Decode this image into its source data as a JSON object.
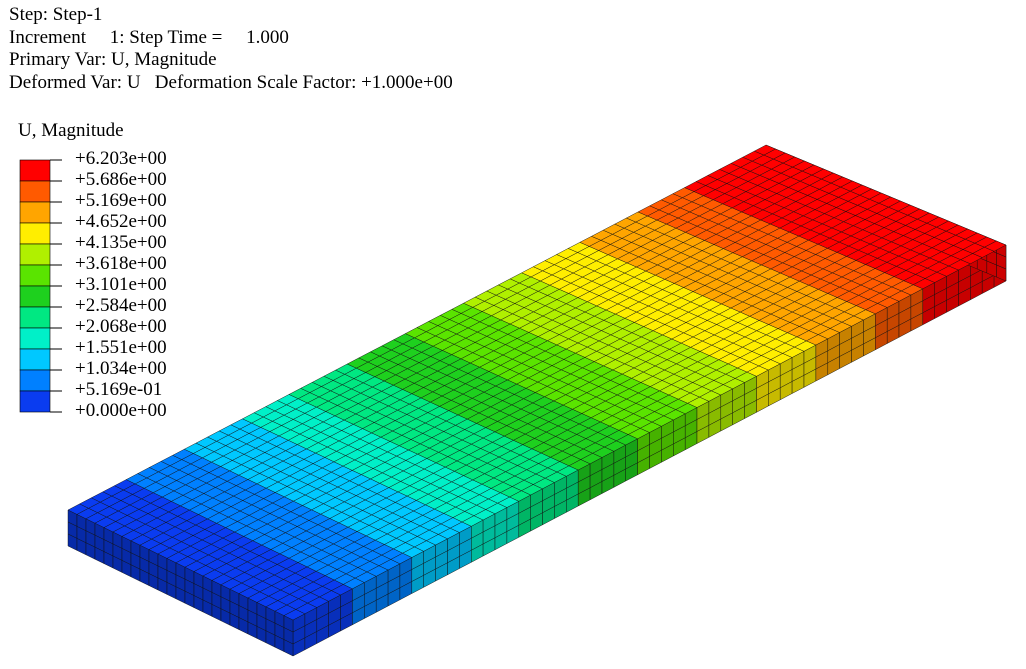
{
  "header": {
    "lines": [
      "Step: Step-1",
      "Increment     1: Step Time =     1.000",
      "Primary Var: U, Magnitude",
      "Deformed Var: U   Deformation Scale Factor: +1.000e+00"
    ]
  },
  "legend": {
    "title": "U, Magnitude",
    "labels": [
      "+6.203e+00",
      "+5.686e+00",
      "+5.169e+00",
      "+4.652e+00",
      "+4.135e+00",
      "+3.618e+00",
      "+3.101e+00",
      "+2.584e+00",
      "+2.068e+00",
      "+1.551e+00",
      "+1.034e+00",
      "+5.169e-01",
      "+0.000e+00"
    ],
    "colors": [
      "#ff0000",
      "#ff5a00",
      "#ffa500",
      "#ffee00",
      "#b0f000",
      "#5ae400",
      "#1ed01e",
      "#00e882",
      "#00f0c8",
      "#00c8ff",
      "#0080ff",
      "#0a3cf0"
    ]
  }
}
